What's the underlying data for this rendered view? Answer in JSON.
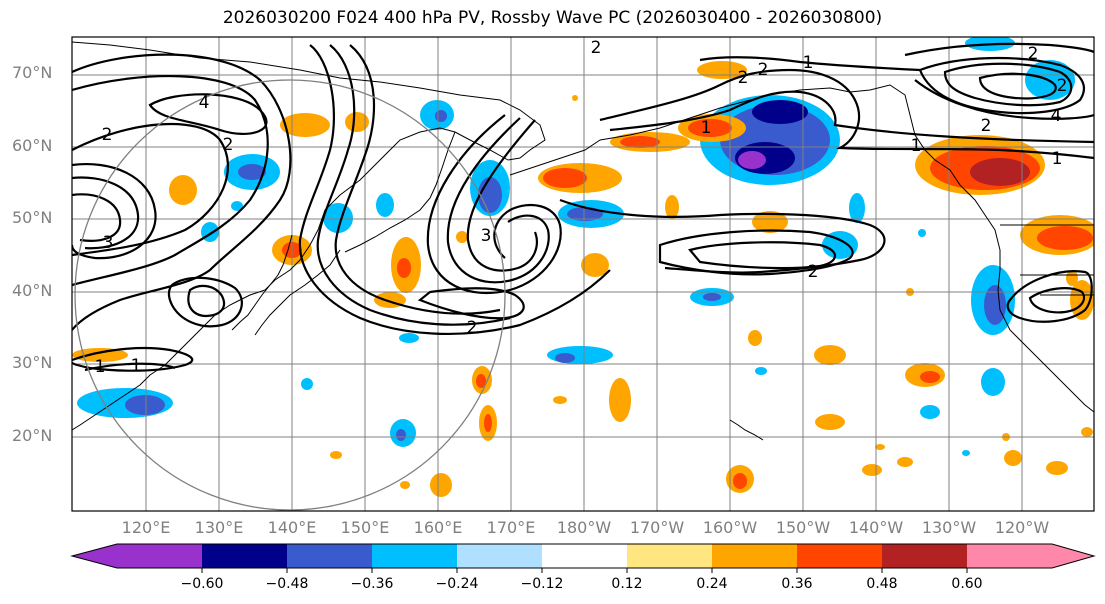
{
  "title": "2026030200 F024 400 hPa PV, Rossby Wave PC (2026030400 - 2026030800)",
  "lat_labels": [
    "70°N",
    "60°N",
    "50°N",
    "40°N",
    "30°N",
    "20°N"
  ],
  "lon_labels": [
    "120°E",
    "130°E",
    "140°E",
    "150°E",
    "160°E",
    "170°E",
    "180°W",
    "170°W",
    "160°W",
    "150°W",
    "140°W",
    "130°W",
    "120°W"
  ],
  "colorbar": {
    "tick_labels": [
      "−0.60",
      "−0.48",
      "−0.36",
      "−0.24",
      "−0.12",
      "0.12",
      "0.24",
      "0.36",
      "0.48",
      "0.60"
    ],
    "colors": [
      "#9932cc",
      "#00008b",
      "#3a5bcd",
      "#00bfff",
      "#b0e0ff",
      "#ffffff",
      "#ffe680",
      "#ffa500",
      "#ff4500",
      "#b22222",
      "#ff88aa"
    ]
  },
  "contour_labels": [
    "2",
    "4",
    "2",
    "3",
    "3",
    "1",
    "1",
    "2",
    "2",
    "2",
    "1",
    "2",
    "2",
    "4",
    "2",
    "1",
    "1",
    "2",
    "2",
    "1"
  ],
  "colors": {
    "coast": "#000000",
    "grid": "#808080",
    "contour": "#000000",
    "circle": "#808080"
  }
}
